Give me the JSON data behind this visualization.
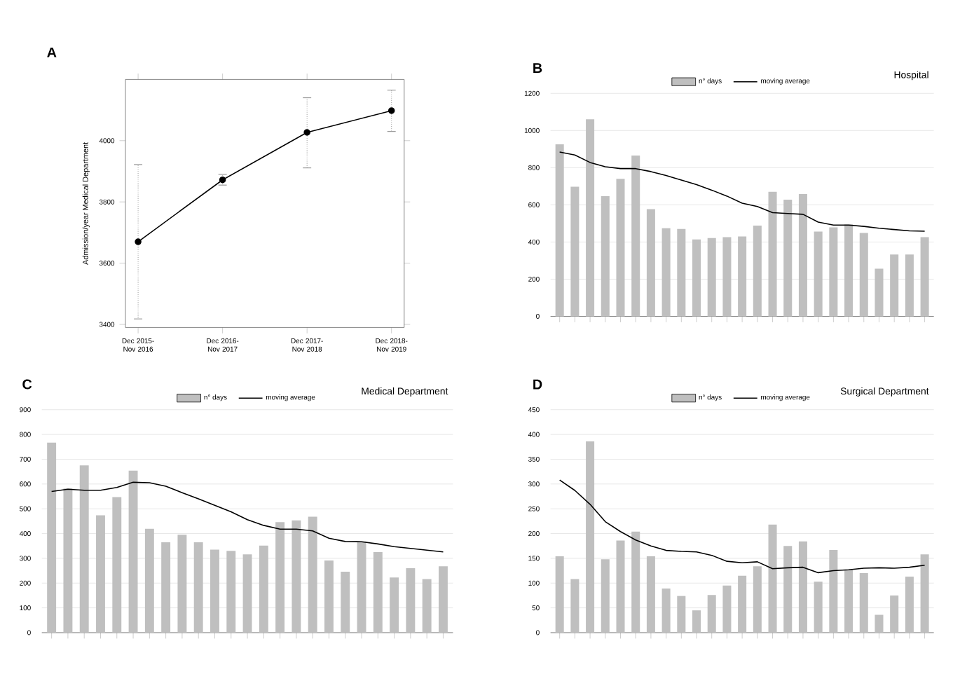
{
  "chart_data": [
    {
      "type": "line",
      "annotations": [
        "A"
      ],
      "ylabel": "Admission/year Medical Department",
      "categories": [
        "Dec 2015-Nov 2016",
        "Dec 2016-Nov 2017",
        "Dec 2017-Nov 2018",
        "Dec 2018-Nov 2019"
      ],
      "series": [
        {
          "color": "#000000",
          "values": [
            3670,
            3872,
            4027,
            4098
          ],
          "errors": [
            [
              3418,
              3922
            ],
            [
              3855,
              3890
            ],
            [
              3911,
              4140
            ],
            [
              4030,
              4165
            ]
          ]
        }
      ],
      "ylim": [
        3390,
        4200
      ],
      "yticks": [
        3400,
        3600,
        3800,
        4000
      ],
      "marker": "circle",
      "line_style": "solid"
    },
    {
      "type": "bar",
      "title": "Hospital",
      "annotations": [
        "B"
      ],
      "categories": [
        null,
        null,
        null,
        null,
        null,
        null,
        null,
        null,
        null,
        null,
        null,
        null,
        null,
        null,
        null,
        null,
        null,
        null,
        null,
        null,
        null,
        null,
        null,
        null,
        null
      ],
      "series": [
        {
          "name": "n° days",
          "type": "bar",
          "color": "#bfbfbf",
          "values": [
            926,
            698,
            1060,
            647,
            740,
            865,
            577,
            474,
            470,
            414,
            421,
            426,
            430,
            488,
            670,
            628,
            658,
            456,
            479,
            495,
            449,
            256,
            333,
            333,
            426
          ]
        },
        {
          "name": "moving average",
          "type": "line",
          "color": "#000000",
          "values": [
            884,
            868,
            828,
            805,
            795,
            795,
            779,
            758,
            733,
            709,
            679,
            647,
            609,
            591,
            558,
            553,
            549,
            507,
            491,
            491,
            484,
            474,
            467,
            460,
            458
          ]
        }
      ],
      "ylim": [
        0,
        1200
      ],
      "yticks": [
        0,
        200,
        400,
        600,
        800,
        1000,
        1200
      ],
      "grid": "y",
      "legend": "top"
    },
    {
      "type": "bar",
      "title": "Medical Department",
      "annotations": [
        "C"
      ],
      "categories": [
        null,
        null,
        null,
        null,
        null,
        null,
        null,
        null,
        null,
        null,
        null,
        null,
        null,
        null,
        null,
        null,
        null,
        null,
        null,
        null,
        null,
        null,
        null,
        null,
        null
      ],
      "series": [
        {
          "name": "n° days",
          "type": "bar",
          "color": "#bfbfbf",
          "values": [
            767,
            582,
            675,
            474,
            547,
            654,
            419,
            365,
            395,
            365,
            335,
            330,
            316,
            351,
            446,
            453,
            468,
            291,
            246,
            368,
            325,
            223,
            260,
            216,
            268
          ]
        },
        {
          "name": "moving average",
          "type": "line",
          "color": "#000000",
          "values": [
            570,
            579,
            575,
            575,
            586,
            607,
            605,
            591,
            565,
            540,
            514,
            488,
            456,
            433,
            418,
            418,
            411,
            381,
            368,
            367,
            358,
            347,
            340,
            333,
            326
          ]
        }
      ],
      "ylim": [
        0,
        900
      ],
      "yticks": [
        0,
        100,
        200,
        300,
        400,
        500,
        600,
        700,
        800,
        900
      ],
      "grid": "y",
      "legend": "top"
    },
    {
      "type": "bar",
      "title": "Surgical Department",
      "annotations": [
        "D"
      ],
      "categories": [
        null,
        null,
        null,
        null,
        null,
        null,
        null,
        null,
        null,
        null,
        null,
        null,
        null,
        null,
        null,
        null,
        null,
        null,
        null,
        null,
        null,
        null,
        null,
        null,
        null
      ],
      "series": [
        {
          "name": "n° days",
          "type": "bar",
          "color": "#bfbfbf",
          "values": [
            154,
            108,
            386,
            148,
            186,
            204,
            154,
            89,
            74,
            45,
            76,
            95,
            115,
            134,
            218,
            175,
            184,
            103,
            167,
            127,
            120,
            36,
            75,
            113,
            158
          ]
        },
        {
          "name": "moving average",
          "type": "line",
          "color": "#000000",
          "values": [
            308,
            287,
            259,
            224,
            204,
            187,
            175,
            166,
            164,
            163,
            156,
            144,
            141,
            143,
            129,
            131,
            132,
            121,
            125,
            127,
            130,
            131,
            130,
            132,
            136
          ]
        }
      ],
      "ylim": [
        0,
        450
      ],
      "yticks": [
        0,
        50,
        100,
        150,
        200,
        250,
        300,
        350,
        400,
        450
      ],
      "grid": "y",
      "legend": "top"
    }
  ]
}
